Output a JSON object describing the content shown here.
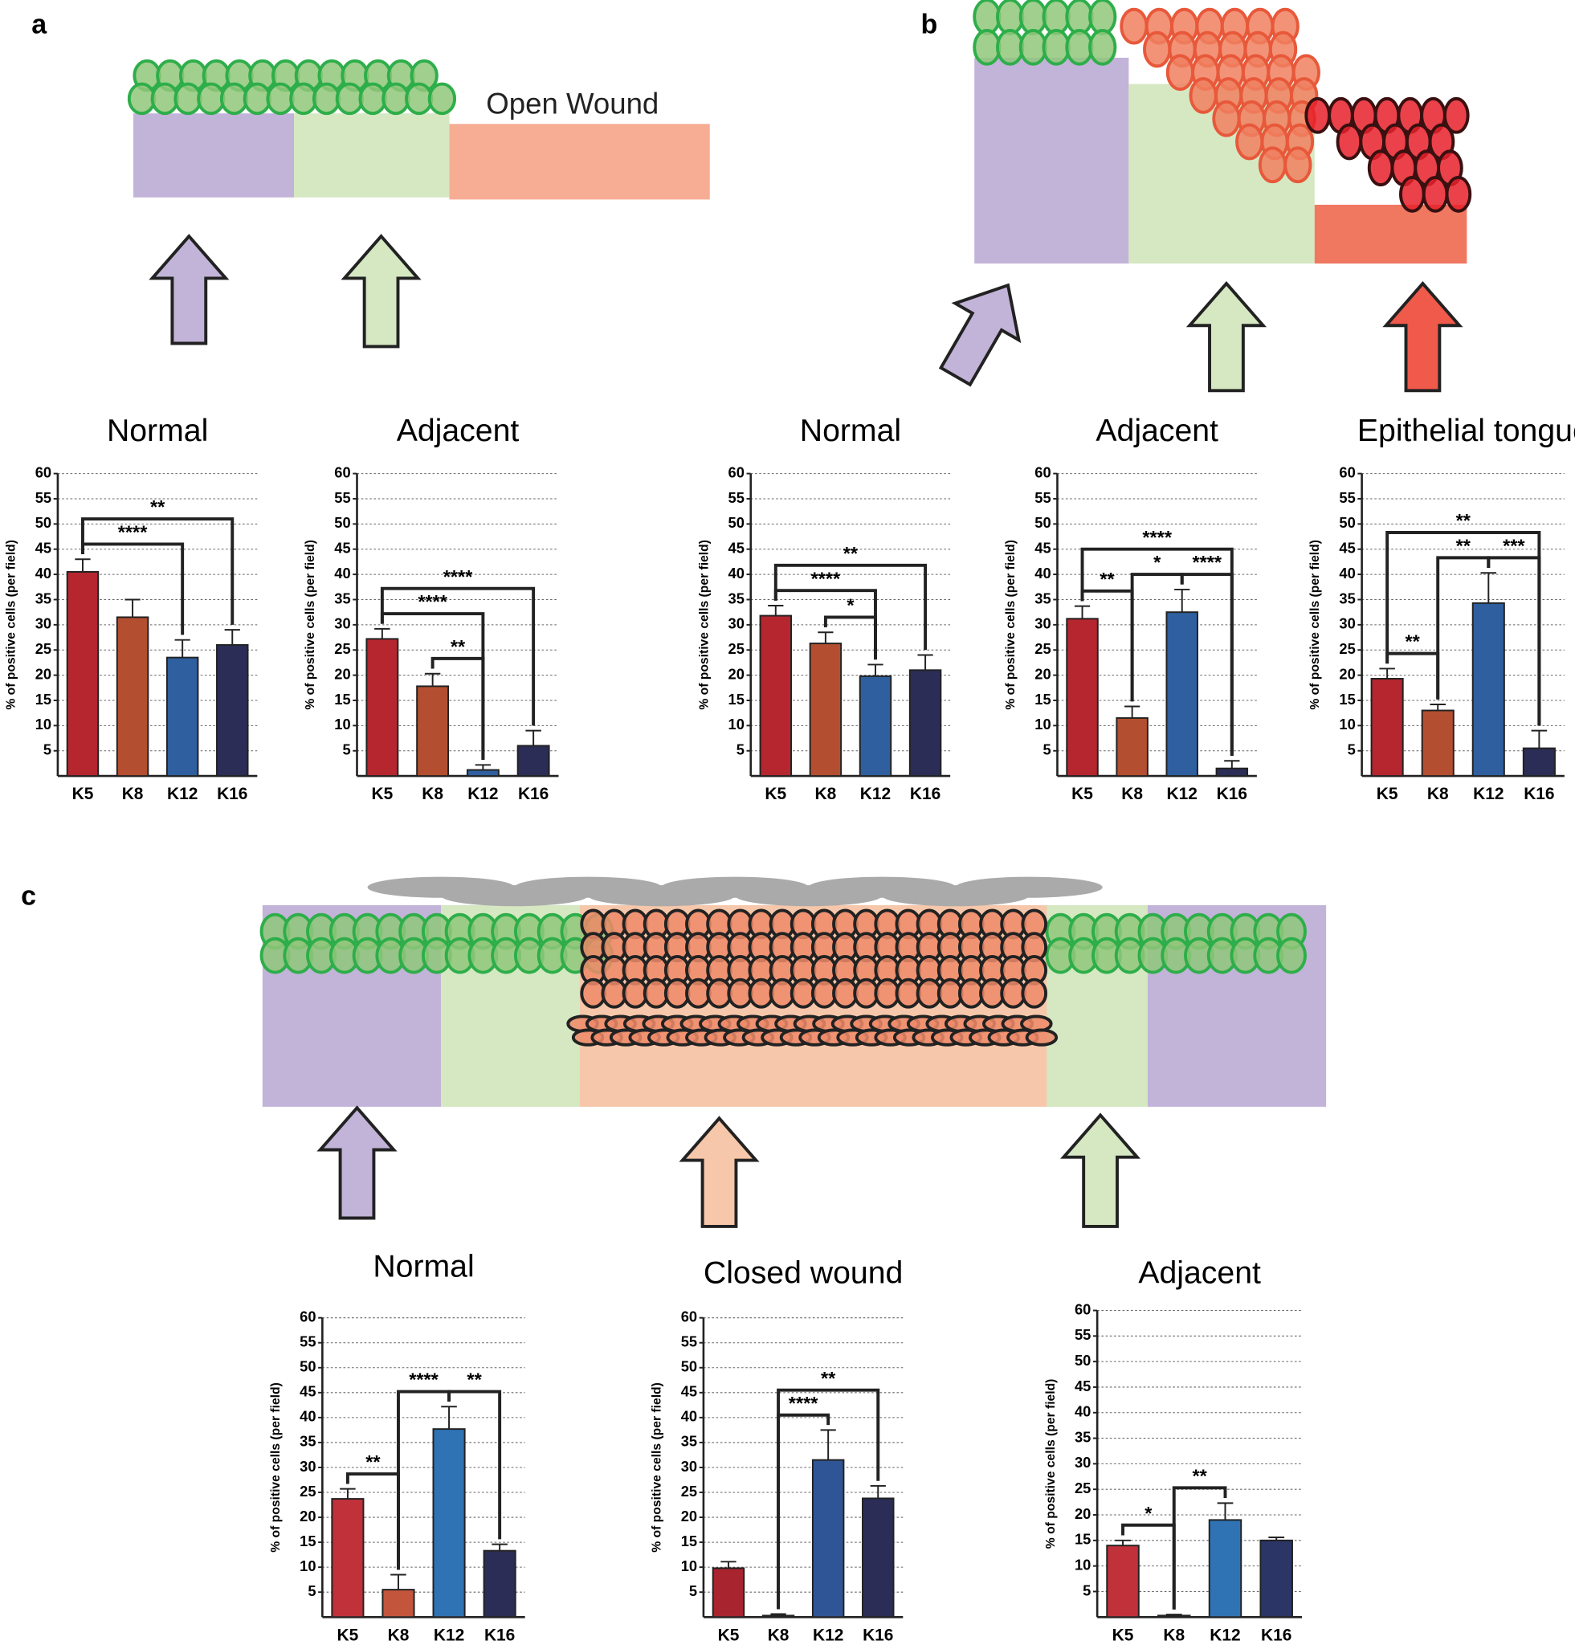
{
  "panel_labels": [
    "a",
    "b",
    "c"
  ],
  "diagram_labels": [
    "Open Wound"
  ],
  "chart_data": [
    {
      "type": "bar",
      "title": "Normal",
      "y_label": "% of positive cells (per field)",
      "categories": [
        "K5",
        "K8",
        "K12",
        "K16"
      ],
      "values": [
        40.5,
        31.5,
        23.5,
        26
      ],
      "errors": [
        2.5,
        3.5,
        3.5,
        3
      ],
      "colors": [
        "#b5262f",
        "#b34f30",
        "#2f5f9e",
        "#2b2d57"
      ],
      "ylim": [
        0,
        60
      ],
      "yticks": [
        5,
        10,
        15,
        20,
        25,
        30,
        35,
        40,
        45,
        50,
        55,
        60
      ],
      "grid": true,
      "annotations": [
        {
          "label": "****",
          "between": [
            "K5",
            "K12"
          ]
        },
        {
          "label": "**",
          "between": [
            "K5",
            "K16"
          ]
        }
      ]
    },
    {
      "type": "bar",
      "title": "Adjacent",
      "y_label": "% of positive cells (per field)",
      "categories": [
        "K5",
        "K8",
        "K12",
        "K16"
      ],
      "values": [
        27.2,
        17.8,
        1.2,
        6
      ],
      "errors": [
        2,
        2.5,
        1,
        3
      ],
      "colors": [
        "#b5262f",
        "#b34f30",
        "#2f5f9e",
        "#2b2d57"
      ],
      "ylim": [
        0,
        60
      ],
      "yticks": [
        5,
        10,
        15,
        20,
        25,
        30,
        35,
        40,
        45,
        50,
        55,
        60
      ],
      "grid": true,
      "annotations": [
        {
          "label": "**",
          "between": [
            "K8",
            "K12"
          ]
        },
        {
          "label": "****",
          "between": [
            "K5",
            "K12"
          ]
        },
        {
          "label": "****",
          "between": [
            "K5",
            "K16"
          ]
        }
      ]
    },
    {
      "type": "bar",
      "title": "Normal",
      "y_label": "% of positive cells (per field)",
      "categories": [
        "K5",
        "K8",
        "K12",
        "K16"
      ],
      "values": [
        31.8,
        26.3,
        19.8,
        21
      ],
      "errors": [
        2,
        2.2,
        2.3,
        3
      ],
      "colors": [
        "#b5262f",
        "#b34f30",
        "#2f5f9e",
        "#2b2d57"
      ],
      "ylim": [
        0,
        60
      ],
      "yticks": [
        5,
        10,
        15,
        20,
        25,
        30,
        35,
        40,
        45,
        50,
        55,
        60
      ],
      "grid": true,
      "annotations": [
        {
          "label": "*",
          "between": [
            "K8",
            "K12"
          ]
        },
        {
          "label": "****",
          "between": [
            "K5",
            "K12"
          ]
        },
        {
          "label": "**",
          "between": [
            "K5",
            "K16"
          ]
        }
      ]
    },
    {
      "type": "bar",
      "title": "Adjacent",
      "y_label": "% of positive cells (per field)",
      "categories": [
        "K5",
        "K8",
        "K12",
        "K16"
      ],
      "values": [
        31.2,
        11.5,
        32.5,
        1.5
      ],
      "errors": [
        2.5,
        2.3,
        4.5,
        1.5
      ],
      "colors": [
        "#b5262f",
        "#b34f30",
        "#2f5f9e",
        "#2b2d57"
      ],
      "ylim": [
        0,
        60
      ],
      "yticks": [
        5,
        10,
        15,
        20,
        25,
        30,
        35,
        40,
        45,
        50,
        55,
        60
      ],
      "grid": true,
      "annotations": [
        {
          "label": "**",
          "between": [
            "K5",
            "K8"
          ]
        },
        {
          "label": "*",
          "between": [
            "K8",
            "K12"
          ]
        },
        {
          "label": "****",
          "between": [
            "K12",
            "K16"
          ]
        },
        {
          "label": "****",
          "between": [
            "K5",
            "K16"
          ]
        }
      ]
    },
    {
      "type": "bar",
      "title": "Epithelial tongue",
      "y_label": "% of positive cells (per field)",
      "categories": [
        "K5",
        "K8",
        "K12",
        "K16"
      ],
      "values": [
        19.3,
        13,
        34.3,
        5.5
      ],
      "errors": [
        2,
        1.2,
        6,
        3.5
      ],
      "colors": [
        "#b5262f",
        "#b34f30",
        "#2f5f9e",
        "#2b2d57"
      ],
      "ylim": [
        0,
        60
      ],
      "yticks": [
        5,
        10,
        15,
        20,
        25,
        30,
        35,
        40,
        45,
        50,
        55,
        60
      ],
      "grid": true,
      "annotations": [
        {
          "label": "**",
          "between": [
            "K5",
            "K8"
          ]
        },
        {
          "label": "**",
          "between": [
            "K8",
            "K12"
          ]
        },
        {
          "label": "***",
          "between": [
            "K12",
            "K16"
          ]
        },
        {
          "label": "**",
          "between": [
            "K5",
            "K16"
          ]
        }
      ]
    },
    {
      "type": "bar",
      "title": "Normal",
      "y_label": "% of positive cells (per field)",
      "categories": [
        "K5",
        "K8",
        "K12",
        "K16"
      ],
      "values": [
        23.7,
        5.5,
        37.7,
        13.3
      ],
      "errors": [
        2,
        3,
        4.5,
        1.3
      ],
      "colors": [
        "#c0313a",
        "#c2553c",
        "#2f73b5",
        "#2b2d57"
      ],
      "ylim": [
        0,
        60
      ],
      "yticks": [
        5,
        10,
        15,
        20,
        25,
        30,
        35,
        40,
        45,
        50,
        55,
        60
      ],
      "grid": true,
      "annotations": [
        {
          "label": "**",
          "between": [
            "K5",
            "K8"
          ]
        },
        {
          "label": "****",
          "between": [
            "K8",
            "K12"
          ]
        },
        {
          "label": "**",
          "between": [
            "K12",
            "K16"
          ]
        }
      ]
    },
    {
      "type": "bar",
      "title": "Closed wound",
      "y_label": "% of positive cells (per field)",
      "categories": [
        "K5",
        "K8",
        "K12",
        "K16"
      ],
      "values": [
        9.8,
        0.3,
        31.5,
        23.8
      ],
      "errors": [
        1.3,
        0.3,
        6,
        2.5
      ],
      "colors": [
        "#a8242f",
        "#b34f30",
        "#2f5596",
        "#2b2d57"
      ],
      "ylim": [
        0,
        60
      ],
      "yticks": [
        5,
        10,
        15,
        20,
        25,
        30,
        35,
        40,
        45,
        50,
        55,
        60
      ],
      "grid": true,
      "annotations": [
        {
          "label": "****",
          "between": [
            "K8",
            "K12"
          ]
        },
        {
          "label": "**",
          "between": [
            "K8",
            "K16"
          ]
        }
      ]
    },
    {
      "type": "bar",
      "title": "Adjacent",
      "y_label": "% of positive cells (per field)",
      "categories": [
        "K5",
        "K8",
        "K12",
        "K16"
      ],
      "values": [
        14,
        0.3,
        19,
        15
      ],
      "errors": [
        1,
        0.2,
        3.3,
        0.6
      ],
      "colors": [
        "#c0313a",
        "#c2553c",
        "#2f73b5",
        "#2b3566"
      ],
      "ylim": [
        0,
        60
      ],
      "yticks": [
        5,
        10,
        15,
        20,
        25,
        30,
        35,
        40,
        45,
        50,
        55,
        60
      ],
      "grid": true,
      "annotations": [
        {
          "label": "*",
          "between": [
            "K5",
            "K8"
          ]
        },
        {
          "label": "**",
          "between": [
            "K8",
            "K12"
          ]
        }
      ]
    }
  ]
}
